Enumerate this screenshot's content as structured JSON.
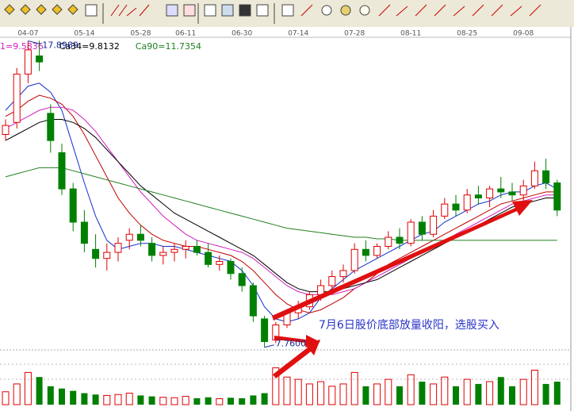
{
  "chart_data": {
    "type": "candlestick",
    "categories": [
      null,
      null,
      "04-07",
      null,
      null,
      null,
      null,
      "05-14",
      null,
      null,
      null,
      null,
      "05-28",
      null,
      null,
      null,
      "06-11",
      null,
      null,
      null,
      null,
      "06-30",
      null,
      null,
      null,
      null,
      "07-14",
      null,
      null,
      null,
      null,
      "07-28",
      null,
      null,
      null,
      null,
      "08-11",
      null,
      null,
      null,
      null,
      "08-25",
      null,
      null,
      null,
      null,
      "09-08",
      null,
      null,
      null
    ],
    "ylim": [
      7.7,
      18.2
    ],
    "up_color": "#e00000",
    "down_color": "#008000",
    "ohlc": [
      [
        14.8,
        15.3,
        14.6,
        15.1
      ],
      [
        15.2,
        17.0,
        15.0,
        16.8
      ],
      [
        16.8,
        17.8989,
        16.5,
        17.6
      ],
      [
        17.4,
        17.9,
        16.9,
        17.2
      ],
      [
        15.5,
        15.8,
        14.2,
        14.6
      ],
      [
        14.2,
        14.5,
        12.8,
        13.0
      ],
      [
        13.0,
        13.2,
        11.6,
        11.9
      ],
      [
        11.9,
        12.3,
        10.9,
        11.2
      ],
      [
        11.0,
        11.5,
        10.4,
        10.7
      ],
      [
        10.7,
        11.2,
        10.3,
        10.9
      ],
      [
        10.9,
        11.4,
        10.6,
        11.2
      ],
      [
        11.3,
        11.7,
        11.0,
        11.5
      ],
      [
        11.5,
        11.8,
        11.1,
        11.3
      ],
      [
        11.2,
        11.4,
        10.6,
        10.8
      ],
      [
        10.8,
        11.1,
        10.5,
        10.9
      ],
      [
        10.9,
        11.2,
        10.6,
        11.0
      ],
      [
        11.0,
        11.3,
        10.7,
        11.1
      ],
      [
        11.1,
        11.3,
        10.8,
        10.9
      ],
      [
        10.9,
        11.2,
        10.4,
        10.5
      ],
      [
        10.5,
        10.8,
        10.3,
        10.6
      ],
      [
        10.6,
        10.7,
        10.0,
        10.2
      ],
      [
        10.2,
        10.4,
        9.6,
        9.8
      ],
      [
        9.8,
        9.9,
        8.6,
        8.8
      ],
      [
        8.7,
        8.8,
        7.76,
        7.95
      ],
      [
        8.0,
        8.6,
        7.9,
        8.5
      ],
      [
        8.5,
        9.0,
        8.4,
        8.9
      ],
      [
        8.9,
        9.3,
        8.7,
        9.1
      ],
      [
        9.1,
        9.6,
        9.0,
        9.5
      ],
      [
        9.5,
        10.0,
        9.3,
        9.8
      ],
      [
        9.8,
        10.3,
        9.6,
        10.1
      ],
      [
        10.1,
        10.5,
        9.9,
        10.3
      ],
      [
        10.3,
        11.2,
        10.2,
        11.0
      ],
      [
        11.0,
        11.3,
        10.6,
        10.8
      ],
      [
        10.8,
        11.2,
        10.7,
        11.1
      ],
      [
        11.1,
        11.6,
        11.0,
        11.4
      ],
      [
        11.4,
        11.7,
        11.0,
        11.2
      ],
      [
        11.2,
        12.0,
        11.1,
        11.9
      ],
      [
        11.9,
        12.1,
        11.3,
        11.5
      ],
      [
        11.5,
        12.3,
        11.4,
        12.1
      ],
      [
        12.1,
        12.7,
        12.0,
        12.5
      ],
      [
        12.5,
        12.8,
        12.1,
        12.3
      ],
      [
        12.3,
        13.0,
        12.2,
        12.8
      ],
      [
        12.8,
        13.1,
        12.5,
        12.7
      ],
      [
        12.7,
        13.1,
        12.4,
        13.0
      ],
      [
        13.0,
        13.4,
        12.7,
        12.9
      ],
      [
        12.9,
        13.2,
        12.6,
        12.8
      ],
      [
        12.8,
        13.3,
        12.5,
        13.1
      ],
      [
        13.1,
        13.9,
        13.0,
        13.6
      ],
      [
        13.6,
        14.0,
        13.0,
        13.2
      ],
      [
        13.2,
        13.3,
        12.1,
        12.3
      ]
    ],
    "volume_ylim": [
      0,
      100
    ],
    "volumes": [
      28,
      45,
      70,
      60,
      40,
      35,
      30,
      25,
      22,
      20,
      22,
      25,
      20,
      18,
      16,
      15,
      18,
      14,
      16,
      13,
      15,
      14,
      20,
      25,
      80,
      60,
      55,
      45,
      50,
      40,
      45,
      70,
      40,
      45,
      55,
      40,
      65,
      50,
      45,
      60,
      40,
      55,
      45,
      50,
      60,
      40,
      55,
      75,
      45,
      50
    ],
    "series": [
      {
        "color": "#1030d0",
        "values": [
          15.6,
          16.0,
          16.4,
          16.5,
          16.2,
          15.6,
          14.4,
          13.2,
          12.1,
          11.3,
          11.0,
          11.1,
          11.2,
          11.2,
          11.1,
          11.1,
          11.0,
          10.9,
          10.8,
          10.7,
          10.6,
          10.3,
          9.8,
          9.1,
          8.7,
          8.6,
          8.7,
          8.9,
          9.4,
          9.7,
          10.0,
          10.3,
          10.5,
          10.7,
          10.9,
          11.1,
          11.3,
          11.5,
          11.6,
          11.9,
          12.1,
          12.3,
          12.5,
          12.6,
          12.8,
          12.9,
          12.9,
          13.1,
          13.2,
          13.0
        ]
      },
      {
        "color": "#c00000",
        "values": [
          15.4,
          15.6,
          15.9,
          16.1,
          16.0,
          15.8,
          15.4,
          14.8,
          14.1,
          13.4,
          12.7,
          12.2,
          11.8,
          11.5,
          11.3,
          11.2,
          11.1,
          11.1,
          11.0,
          10.9,
          10.8,
          10.6,
          10.3,
          9.9,
          9.5,
          9.2,
          9.0,
          8.9,
          9.0,
          9.2,
          9.4,
          9.7,
          9.9,
          10.2,
          10.5,
          10.7,
          10.9,
          11.1,
          11.3,
          11.5,
          11.7,
          11.9,
          12.1,
          12.3,
          12.5,
          12.6,
          12.7,
          12.8,
          12.9,
          12.9
        ]
      },
      {
        "name": "1=9.5836",
        "current": 9.5836,
        "color": "#d020c0",
        "values": [
          15.0,
          15.2,
          15.4,
          15.6,
          15.7,
          15.7,
          15.6,
          15.3,
          14.9,
          14.4,
          13.9,
          13.4,
          12.9,
          12.5,
          12.1,
          11.8,
          11.5,
          11.3,
          11.2,
          11.1,
          11.0,
          10.9,
          10.7,
          10.4,
          10.1,
          9.8,
          9.6,
          9.5,
          9.5,
          9.5,
          9.6,
          9.7,
          9.9,
          10.1,
          10.3,
          10.5,
          10.7,
          10.9,
          11.1,
          11.3,
          11.5,
          11.7,
          11.9,
          12.1,
          12.3,
          12.5,
          12.6,
          12.7,
          12.8,
          12.8
        ]
      },
      {
        "name": "Ca34=9.8132",
        "current": 9.8132,
        "color": "#000000",
        "values": [
          14.6,
          14.8,
          15.0,
          15.2,
          15.3,
          15.3,
          15.2,
          15.0,
          14.7,
          14.3,
          13.9,
          13.5,
          13.1,
          12.8,
          12.5,
          12.2,
          12.0,
          11.8,
          11.6,
          11.4,
          11.2,
          11.0,
          10.8,
          10.5,
          10.2,
          9.9,
          9.7,
          9.6,
          9.6,
          9.6,
          9.7,
          9.8,
          9.9,
          10.0,
          10.2,
          10.4,
          10.6,
          10.8,
          11.0,
          11.2,
          11.4,
          11.6,
          11.8,
          12.0,
          12.2,
          12.4,
          12.5,
          12.6,
          12.7,
          12.7
        ]
      },
      {
        "name": "Ca90=11.7354",
        "current": 11.7354,
        "color": "#208020",
        "values": [
          13.4,
          13.5,
          13.6,
          13.7,
          13.7,
          13.7,
          13.6,
          13.5,
          13.4,
          13.3,
          13.2,
          13.1,
          13.0,
          12.9,
          12.8,
          12.7,
          12.6,
          12.5,
          12.4,
          12.3,
          12.2,
          12.1,
          12.0,
          11.9,
          11.8,
          11.7,
          11.65,
          11.6,
          11.55,
          11.5,
          11.45,
          11.4,
          11.4,
          11.35,
          11.35,
          11.3,
          11.3,
          11.3,
          11.3,
          11.3,
          11.3,
          11.3,
          11.3,
          11.3,
          11.3,
          11.3,
          11.3,
          11.3,
          11.3,
          11.3
        ]
      }
    ],
    "high_label": 17.8989,
    "low_label": {
      "value": 7.76,
      "label": "7.7600"
    },
    "annotation": "7月6日股价底部放量收阳，选股买入"
  }
}
